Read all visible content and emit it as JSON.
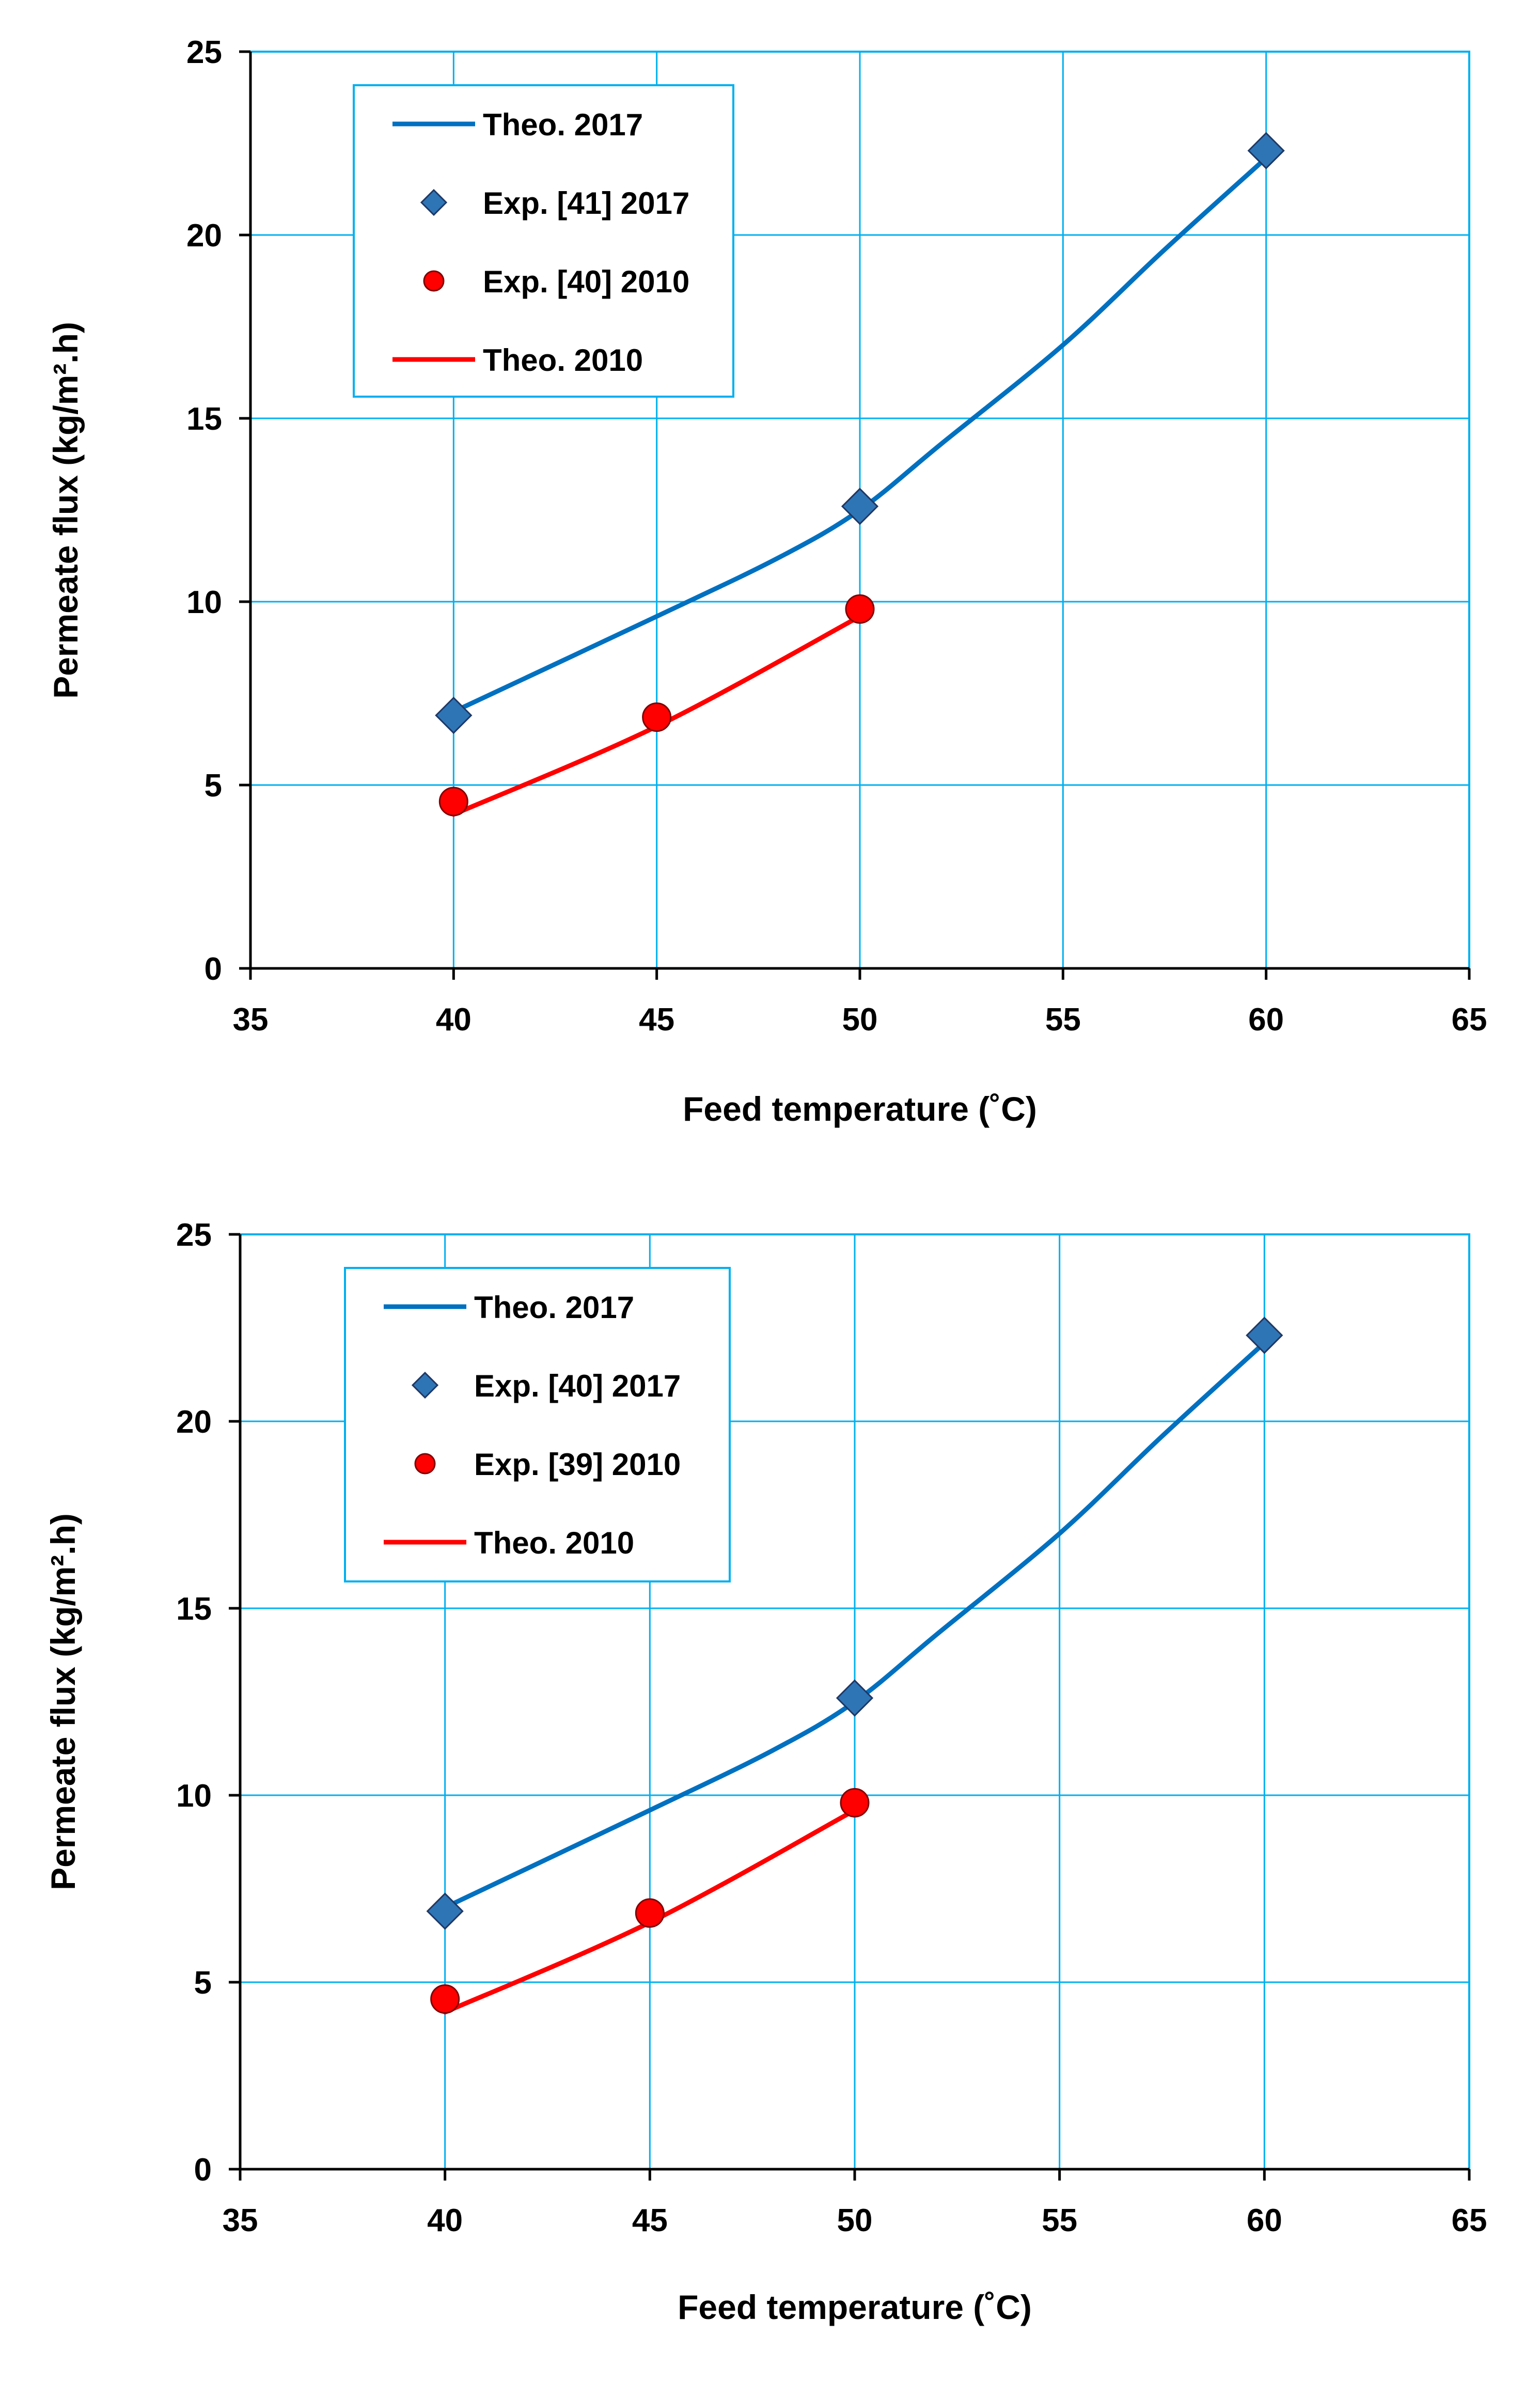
{
  "colors": {
    "grid": "#00B0F0",
    "axis": "#000000",
    "theo2017": "#0070C0",
    "exp2017_marker": "#2E75B6",
    "theo2010": "#FF0000",
    "exp2010_marker": "#FF0000",
    "legend_border": "#00B0F0"
  },
  "chart_data": [
    {
      "type": "line",
      "xlabel": "Feed temperature (˚C)",
      "ylabel": "Permeate flux (kg/m².h)",
      "xlim": [
        35,
        65
      ],
      "ylim": [
        0,
        25
      ],
      "xticks": [
        "35",
        "40",
        "45",
        "50",
        "55",
        "60",
        "65"
      ],
      "yticks": [
        "0",
        "5",
        "10",
        "15",
        "20",
        "25"
      ],
      "grid": true,
      "legend_position": "top-left",
      "series": [
        {
          "name": "Theo. 2017",
          "kind": "line",
          "color_key": "theo2017",
          "x": [
            40,
            45,
            48,
            50,
            52,
            55,
            57.5,
            60
          ],
          "y": [
            7.0,
            9.6,
            11.2,
            12.5,
            14.3,
            17.0,
            19.6,
            22.1
          ]
        },
        {
          "name": "Exp. [41] 2017",
          "kind": "diamond",
          "color_key": "exp2017_marker",
          "x": [
            40,
            50,
            60
          ],
          "y": [
            6.9,
            12.6,
            22.3
          ]
        },
        {
          "name": "Exp. [40] 2010",
          "kind": "circle",
          "color_key": "exp2010_marker",
          "x": [
            40,
            45,
            50
          ],
          "y": [
            4.55,
            6.85,
            9.8
          ]
        },
        {
          "name": "Theo. 2010",
          "kind": "line",
          "color_key": "theo2010",
          "x": [
            40,
            45,
            50
          ],
          "y": [
            4.2,
            6.6,
            9.6
          ]
        }
      ]
    },
    {
      "type": "line",
      "xlabel": "Feed temperature (˚C)",
      "ylabel": "Permeate flux (kg/m².h)",
      "xlim": [
        35,
        65
      ],
      "ylim": [
        0,
        25
      ],
      "xticks": [
        "35",
        "40",
        "45",
        "50",
        "55",
        "60",
        "65"
      ],
      "yticks": [
        "0",
        "5",
        "10",
        "15",
        "20",
        "25"
      ],
      "grid": true,
      "legend_position": "top-left",
      "series": [
        {
          "name": "Theo. 2017",
          "kind": "line",
          "color_key": "theo2017",
          "x": [
            40,
            45,
            48,
            50,
            52,
            55,
            57.5,
            60
          ],
          "y": [
            7.0,
            9.6,
            11.2,
            12.5,
            14.3,
            17.0,
            19.6,
            22.1
          ]
        },
        {
          "name": "Exp. [40] 2017",
          "kind": "diamond",
          "color_key": "exp2017_marker",
          "x": [
            40,
            50,
            60
          ],
          "y": [
            6.9,
            12.6,
            22.3
          ]
        },
        {
          "name": "Exp. [39] 2010",
          "kind": "circle",
          "color_key": "exp2010_marker",
          "x": [
            40,
            45,
            50
          ],
          "y": [
            4.55,
            6.85,
            9.8
          ]
        },
        {
          "name": "Theo. 2010",
          "kind": "line",
          "color_key": "theo2010",
          "x": [
            40,
            45,
            50
          ],
          "y": [
            4.2,
            6.6,
            9.6
          ]
        }
      ]
    }
  ]
}
